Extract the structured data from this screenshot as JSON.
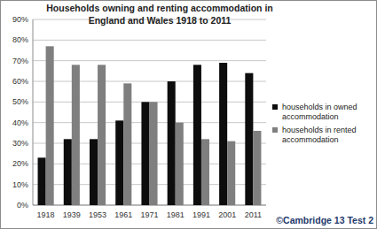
{
  "chart_data": {
    "type": "bar",
    "title": "Households owning and renting accommodation in England and Wales 1918 to 2011",
    "categories": [
      "1918",
      "1939",
      "1953",
      "1961",
      "1971",
      "1981",
      "1991",
      "2001",
      "2011"
    ],
    "series": [
      {
        "name": "households in owned accommodation",
        "color": "#0d0d0d",
        "values": [
          23,
          32,
          32,
          41,
          50,
          60,
          68,
          69,
          64
        ]
      },
      {
        "name": "households in rented accommodation",
        "color": "#7f7f7f",
        "values": [
          77,
          68,
          68,
          59,
          50,
          40,
          32,
          31,
          36
        ]
      }
    ],
    "ylim": [
      0,
      90
    ],
    "yticks": [
      {
        "value": 0,
        "label": "0%"
      },
      {
        "value": 10,
        "label": "10%"
      },
      {
        "value": 20,
        "label": "20%"
      },
      {
        "value": 30,
        "label": "30%"
      },
      {
        "value": 40,
        "label": "40%"
      },
      {
        "value": 50,
        "label": "50%"
      },
      {
        "value": 60,
        "label": "60%"
      },
      {
        "value": 70,
        "label": "70%"
      },
      {
        "value": 80,
        "label": "80%"
      },
      {
        "value": 90,
        "label": "90%"
      }
    ],
    "grid": true,
    "legend": "right",
    "annotations": [
      "©Cambridge 13 Test 2"
    ]
  }
}
